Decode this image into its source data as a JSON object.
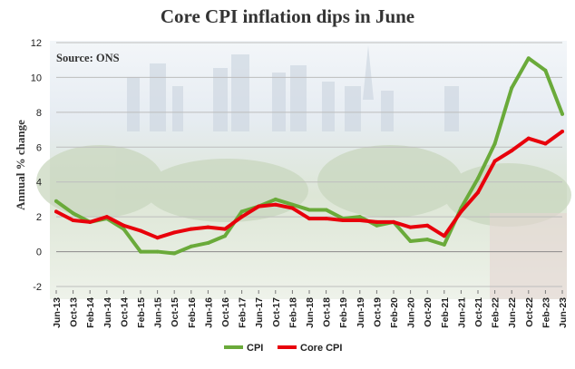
{
  "title": "Core CPI inflation dips in June",
  "chart_data": {
    "type": "line",
    "source": "Source: ONS",
    "ylabel": "Annual % change",
    "xlabel": "",
    "ylim": [
      -2,
      12
    ],
    "yticks": [
      -2,
      0,
      2,
      4,
      6,
      8,
      10,
      12
    ],
    "grid": true,
    "legend_position": "bottom",
    "x_tick_labels": [
      "Jun-13",
      "Oct-13",
      "Feb-14",
      "Jun-14",
      "Oct-14",
      "Feb-15",
      "Jun-15",
      "Oct-15",
      "Feb-16",
      "Jun-16",
      "Oct-16",
      "Feb-17",
      "Jun-17",
      "Oct-17",
      "Feb-18",
      "Jun-18",
      "Oct-18",
      "Feb-19",
      "Jun-19",
      "Oct-19",
      "Feb-20",
      "Jun-20",
      "Oct-20",
      "Feb-21",
      "Jun-21",
      "Oct-21",
      "Feb-22",
      "Jun-22",
      "Oct-22",
      "Feb-23",
      "Jun-23"
    ],
    "series": [
      {
        "name": "CPI",
        "color": "#6aaa3a",
        "x": [
          "Jun-13",
          "Oct-13",
          "Feb-14",
          "Jun-14",
          "Oct-14",
          "Feb-15",
          "Jun-15",
          "Oct-15",
          "Feb-16",
          "Jun-16",
          "Oct-16",
          "Feb-17",
          "Jun-17",
          "Oct-17",
          "Feb-18",
          "Jun-18",
          "Oct-18",
          "Feb-19",
          "Jun-19",
          "Oct-19",
          "Feb-20",
          "Jun-20",
          "Oct-20",
          "Feb-21",
          "Jun-21",
          "Oct-21",
          "Feb-22",
          "Jun-22",
          "Oct-22",
          "Feb-23",
          "Jun-23"
        ],
        "values": [
          2.9,
          2.2,
          1.7,
          1.9,
          1.3,
          0.0,
          0.0,
          -0.1,
          0.3,
          0.5,
          0.9,
          2.3,
          2.6,
          3.0,
          2.7,
          2.4,
          2.4,
          1.9,
          2.0,
          1.5,
          1.7,
          0.6,
          0.7,
          0.4,
          2.5,
          4.2,
          6.2,
          9.4,
          11.1,
          10.4,
          7.9
        ]
      },
      {
        "name": "Core CPI",
        "color": "#e8000b",
        "x": [
          "Jun-13",
          "Oct-13",
          "Feb-14",
          "Jun-14",
          "Oct-14",
          "Feb-15",
          "Jun-15",
          "Oct-15",
          "Feb-16",
          "Jun-16",
          "Oct-16",
          "Feb-17",
          "Jun-17",
          "Oct-17",
          "Feb-18",
          "Jun-18",
          "Oct-18",
          "Feb-19",
          "Jun-19",
          "Oct-19",
          "Feb-20",
          "Jun-20",
          "Oct-20",
          "Feb-21",
          "Jun-21",
          "Oct-21",
          "Feb-22",
          "Jun-22",
          "Oct-22",
          "Feb-23",
          "Jun-23"
        ],
        "values": [
          2.3,
          1.8,
          1.7,
          2.0,
          1.5,
          1.2,
          0.8,
          1.1,
          1.3,
          1.4,
          1.3,
          2.0,
          2.6,
          2.7,
          2.5,
          1.9,
          1.9,
          1.8,
          1.8,
          1.7,
          1.7,
          1.4,
          1.5,
          0.9,
          2.3,
          3.4,
          5.2,
          5.8,
          6.5,
          6.2,
          6.9
        ]
      }
    ]
  }
}
